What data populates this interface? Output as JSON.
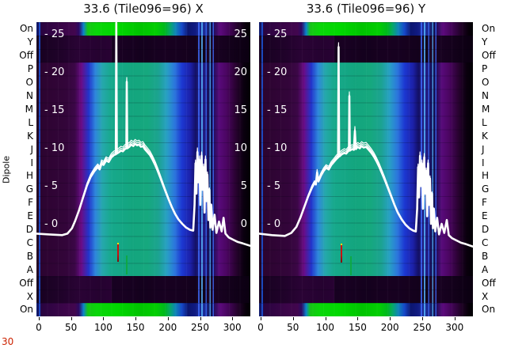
{
  "titles": {
    "left": "33.6 (Tile096=96) X",
    "right": "33.6 (Tile096=96) Y"
  },
  "y_axis_label": "Dipole",
  "dipole_labels": [
    "On",
    "Y",
    "Off",
    "P",
    "O",
    "N",
    "M",
    "L",
    "K",
    "J",
    "I",
    "H",
    "G",
    "F",
    "E",
    "D",
    "C",
    "B",
    "A",
    "Off",
    "X",
    "On"
  ],
  "inner_left": [
    "- 25",
    "- 20",
    "- 15",
    "- 10",
    "- 5",
    "- 0"
  ],
  "inner_right": [
    "25",
    "20",
    "15",
    "10",
    "5",
    "0"
  ],
  "x_ticks": [
    "0",
    "50",
    "100",
    "150",
    "200",
    "250",
    "300"
  ],
  "corner_note": "30",
  "colors": {
    "line": "#ffffff",
    "background": "#ffffff",
    "text": "#000000",
    "corner_note": "#cc2200",
    "colormap": [
      "#1a0120",
      "#5c0a7e",
      "#2135cc",
      "#2f86dc",
      "#17a98c",
      "#00d800"
    ]
  },
  "chart_data": [
    {
      "type": "heatmap",
      "title": "33.6 (Tile096=96) X",
      "row_axis_label": "Dipole",
      "rows_top_to_bottom": [
        "On",
        "Y",
        "Off",
        "P",
        "O",
        "N",
        "M",
        "L",
        "K",
        "J",
        "I",
        "H",
        "G",
        "F",
        "E",
        "D",
        "C",
        "B",
        "A",
        "Off",
        "X",
        "On"
      ],
      "x_range": [
        0,
        330
      ],
      "x_ticks": [
        0,
        50,
        100,
        150,
        200,
        250,
        300
      ],
      "colormap_note": "power: dark purple -> blue -> cyan -> green; On rows bright green, Off/X/Y rows near black, RFI blue stripes near x=255-275",
      "overlay_line": {
        "name": "bandpass (dB)",
        "y_ticks": [
          25,
          20,
          15,
          10,
          5,
          0
        ],
        "points": [
          [
            0,
            -1.3
          ],
          [
            20,
            -1.4
          ],
          [
            40,
            -1.5
          ],
          [
            48,
            -1.3
          ],
          [
            55,
            -0.6
          ],
          [
            60,
            0.4
          ],
          [
            66,
            1.8
          ],
          [
            72,
            3.4
          ],
          [
            78,
            5.0
          ],
          [
            84,
            6.2
          ],
          [
            90,
            7.0
          ],
          [
            95,
            7.5
          ],
          [
            98,
            7.2
          ],
          [
            101,
            8.0
          ],
          [
            104,
            7.8
          ],
          [
            108,
            8.4
          ],
          [
            112,
            8.2
          ],
          [
            116,
            8.8
          ],
          [
            120,
            9.1
          ],
          [
            123,
            9.2
          ],
          [
            123.8,
            26.6
          ],
          [
            124.6,
            9.3
          ],
          [
            128,
            9.5
          ],
          [
            131,
            9.7
          ],
          [
            134,
            9.6
          ],
          [
            137,
            9.9
          ],
          [
            139.3,
            10.0
          ],
          [
            140,
            18.8
          ],
          [
            140.7,
            10.0
          ],
          [
            144,
            10.2
          ],
          [
            147,
            10.5
          ],
          [
            150,
            10.3
          ],
          [
            153,
            10.6
          ],
          [
            156,
            10.4
          ],
          [
            159,
            10.5
          ],
          [
            162,
            10.2
          ],
          [
            165,
            10.3
          ],
          [
            168,
            9.9
          ],
          [
            172,
            9.5
          ],
          [
            176,
            9.1
          ],
          [
            180,
            8.5
          ],
          [
            184,
            7.8
          ],
          [
            188,
            7.0
          ],
          [
            192,
            6.1
          ],
          [
            196,
            5.2
          ],
          [
            200,
            4.3
          ],
          [
            205,
            3.2
          ],
          [
            210,
            2.2
          ],
          [
            215,
            1.3
          ],
          [
            220,
            0.6
          ],
          [
            226,
            0.0
          ],
          [
            232,
            -0.5
          ],
          [
            238,
            -0.8
          ],
          [
            243,
            -0.9
          ],
          [
            245,
            2.5
          ],
          [
            246.5,
            8.0
          ],
          [
            248,
            4.0
          ],
          [
            249.5,
            9.5
          ],
          [
            251,
            5.5
          ],
          [
            252.5,
            8.5
          ],
          [
            254,
            2.5
          ],
          [
            256,
            9.0
          ],
          [
            257.5,
            4.5
          ],
          [
            259,
            7.5
          ],
          [
            260.5,
            1.5
          ],
          [
            262,
            8.5
          ],
          [
            263.5,
            3.0
          ],
          [
            265,
            6.5
          ],
          [
            266.5,
            0.5
          ],
          [
            268,
            4.5
          ],
          [
            269.5,
            -0.5
          ],
          [
            271,
            2.5
          ],
          [
            273,
            -0.8
          ],
          [
            276,
            1.2
          ],
          [
            279,
            -1.2
          ],
          [
            283,
            0.3
          ],
          [
            287,
            -1.0
          ],
          [
            290,
            0.8
          ],
          [
            293,
            -1.3
          ],
          [
            298,
            -1.8
          ],
          [
            305,
            -2.1
          ],
          [
            312,
            -2.4
          ],
          [
            320,
            -2.6
          ],
          [
            331,
            -2.9
          ]
        ]
      }
    },
    {
      "type": "heatmap",
      "title": "33.6 (Tile096=96) Y",
      "row_axis_label": "Dipole",
      "rows_top_to_bottom": [
        "On",
        "Y",
        "Off",
        "P",
        "O",
        "N",
        "M",
        "L",
        "K",
        "J",
        "I",
        "H",
        "G",
        "F",
        "E",
        "D",
        "C",
        "B",
        "A",
        "Off",
        "X",
        "On"
      ],
      "x_range": [
        0,
        330
      ],
      "x_ticks": [
        0,
        50,
        100,
        150,
        200,
        250,
        300
      ],
      "colormap_note": "power: dark purple -> blue -> cyan -> green; On rows bright green, Off/X/Y rows near black, RFI blue stripes near x=255-275",
      "overlay_line": {
        "name": "bandpass (dB)",
        "y_ticks": [
          25,
          20,
          15,
          10,
          5,
          0
        ],
        "points": [
          [
            0,
            -1.3
          ],
          [
            20,
            -1.5
          ],
          [
            40,
            -1.6
          ],
          [
            50,
            -1.2
          ],
          [
            58,
            -0.4
          ],
          [
            64,
            0.8
          ],
          [
            70,
            2.2
          ],
          [
            76,
            3.6
          ],
          [
            82,
            4.8
          ],
          [
            86,
            5.4
          ],
          [
            88,
            5.2
          ],
          [
            90,
            6.8
          ],
          [
            92,
            5.6
          ],
          [
            96,
            6.4
          ],
          [
            100,
            7.0
          ],
          [
            104,
            7.4
          ],
          [
            108,
            7.2
          ],
          [
            112,
            7.8
          ],
          [
            116,
            8.2
          ],
          [
            120,
            8.6
          ],
          [
            122.5,
            8.8
          ],
          [
            123.3,
            23.4
          ],
          [
            124.1,
            8.9
          ],
          [
            128,
            9.2
          ],
          [
            132,
            9.4
          ],
          [
            135,
            9.3
          ],
          [
            138,
            9.6
          ],
          [
            139.3,
            9.7
          ],
          [
            140,
            16.9
          ],
          [
            140.7,
            9.7
          ],
          [
            144,
            9.9
          ],
          [
            147,
            9.8
          ],
          [
            148.5,
            12.3
          ],
          [
            150,
            9.9
          ],
          [
            153,
            10.2
          ],
          [
            156,
            10.0
          ],
          [
            159,
            10.3
          ],
          [
            162,
            10.1
          ],
          [
            166,
            10.2
          ],
          [
            170,
            9.8
          ],
          [
            174,
            9.4
          ],
          [
            178,
            8.9
          ],
          [
            182,
            8.3
          ],
          [
            186,
            7.6
          ],
          [
            190,
            6.8
          ],
          [
            195,
            5.8
          ],
          [
            200,
            4.7
          ],
          [
            205,
            3.6
          ],
          [
            210,
            2.5
          ],
          [
            215,
            1.5
          ],
          [
            221,
            0.6
          ],
          [
            227,
            -0.1
          ],
          [
            233,
            -0.6
          ],
          [
            239,
            -0.9
          ],
          [
            243,
            -1.0
          ],
          [
            245,
            2.0
          ],
          [
            246.5,
            7.5
          ],
          [
            248,
            3.5
          ],
          [
            249.5,
            9.0
          ],
          [
            251,
            5.0
          ],
          [
            252.5,
            8.0
          ],
          [
            254,
            2.0
          ],
          [
            256,
            8.8
          ],
          [
            257.5,
            4.0
          ],
          [
            259,
            7.0
          ],
          [
            260.5,
            1.0
          ],
          [
            262,
            8.0
          ],
          [
            263.5,
            2.5
          ],
          [
            265,
            6.0
          ],
          [
            266.5,
            0.0
          ],
          [
            268,
            4.0
          ],
          [
            269.5,
            -0.6
          ],
          [
            271,
            2.0
          ],
          [
            273,
            -1.0
          ],
          [
            276,
            0.8
          ],
          [
            279,
            -1.4
          ],
          [
            283,
            0.0
          ],
          [
            287,
            -1.2
          ],
          [
            291,
            0.5
          ],
          [
            294,
            -1.5
          ],
          [
            299,
            -1.9
          ],
          [
            306,
            -2.2
          ],
          [
            313,
            -2.5
          ],
          [
            321,
            -2.7
          ],
          [
            331,
            -3.0
          ]
        ]
      }
    }
  ]
}
